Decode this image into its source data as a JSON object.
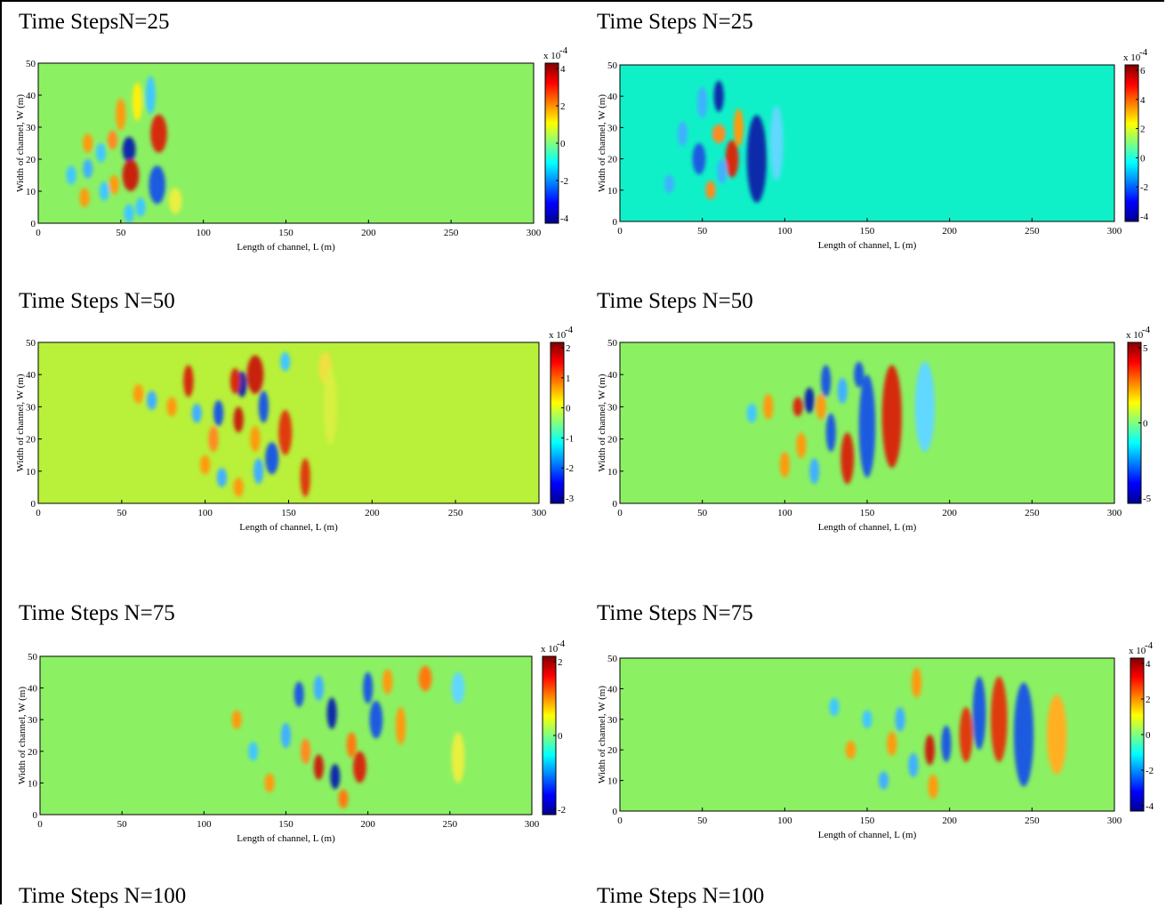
{
  "panels": [
    {
      "title": "Time StepsN=25",
      "pos": "row1-left",
      "bg": "#8cf063",
      "xlabel": "Length of channel, L (m)",
      "ylabel": "Width of channel, W (m)",
      "xticks": [
        0,
        50,
        100,
        150,
        200,
        250,
        300
      ],
      "yticks": [
        0,
        10,
        20,
        30,
        40,
        50
      ],
      "xlim": [
        0,
        300
      ],
      "ylim": [
        0,
        50
      ],
      "cbar_exp": "x 10",
      "cbar_pow": "-4",
      "cbar_ticks": [
        "4",
        "2",
        "0",
        "-2",
        "-4"
      ],
      "blobs": [
        [
          55,
          23,
          4,
          4,
          "#0a2aaa"
        ],
        [
          73,
          28,
          5,
          6,
          "#d62a0a"
        ],
        [
          56,
          15,
          5,
          5,
          "#c8200a"
        ],
        [
          72,
          12,
          5,
          6,
          "#1a5ae0"
        ],
        [
          50,
          34,
          3,
          5,
          "#ff9a10"
        ],
        [
          60,
          38,
          3,
          6,
          "#fff010"
        ],
        [
          68,
          40,
          3,
          6,
          "#40c8ff"
        ],
        [
          45,
          26,
          3,
          3,
          "#ff8a20"
        ],
        [
          38,
          22,
          3,
          3,
          "#40c8ff"
        ],
        [
          30,
          25,
          3,
          3,
          "#ff9a10"
        ],
        [
          30,
          17,
          3,
          3,
          "#40b0ff"
        ],
        [
          46,
          12,
          3,
          3,
          "#ff9a10"
        ],
        [
          40,
          10,
          3,
          3,
          "#40c8ff"
        ],
        [
          28,
          8,
          3,
          3,
          "#ff9a10"
        ],
        [
          20,
          15,
          3,
          3,
          "#40c8ff"
        ],
        [
          62,
          5,
          3,
          3,
          "#40c8ff"
        ],
        [
          83,
          7,
          4,
          4,
          "#e8f040"
        ],
        [
          55,
          3,
          3,
          3,
          "#40c8ff"
        ]
      ]
    },
    {
      "title": "Time Steps N=25",
      "pos": "row1-right",
      "bg": "#10f0c8",
      "xlabel": "Length of channel, L (m)",
      "ylabel": "Width of channel, W (m)",
      "xticks": [
        0,
        50,
        100,
        150,
        200,
        250,
        300
      ],
      "yticks": [
        0,
        10,
        20,
        30,
        40,
        50
      ],
      "xlim": [
        0,
        300
      ],
      "ylim": [
        0,
        50
      ],
      "cbar_exp": "x 10",
      "cbar_pow": "-4",
      "cbar_ticks": [
        "6",
        "4",
        "2",
        "0",
        "-2",
        "-4"
      ],
      "blobs": [
        [
          83,
          20,
          6,
          14,
          "#0a2aaa"
        ],
        [
          68,
          20,
          4,
          6,
          "#d62a0a"
        ],
        [
          72,
          30,
          3,
          6,
          "#ff9a10"
        ],
        [
          60,
          28,
          4,
          3,
          "#ff8a20"
        ],
        [
          55,
          10,
          3,
          3,
          "#ff8a20"
        ],
        [
          60,
          40,
          3,
          5,
          "#0a2aaa"
        ],
        [
          50,
          38,
          3,
          5,
          "#40b0ff"
        ],
        [
          48,
          20,
          4,
          5,
          "#1a5ae0"
        ],
        [
          38,
          28,
          3,
          4,
          "#40b0ff"
        ],
        [
          30,
          12,
          3,
          3,
          "#40b0ff"
        ],
        [
          62,
          16,
          3,
          4,
          "#40b0ff"
        ],
        [
          95,
          25,
          4,
          12,
          "#60d8ff"
        ]
      ]
    },
    {
      "title": "Time Steps N=50",
      "pos": "row2-left",
      "bg": "#b8f03a",
      "xlabel": "Length of channel, L (m)",
      "ylabel": "Width of channel, W (m)",
      "xticks": [
        0,
        50,
        100,
        150,
        200,
        250,
        300
      ],
      "yticks": [
        0,
        10,
        20,
        30,
        40,
        50
      ],
      "xlim": [
        0,
        300
      ],
      "ylim": [
        0,
        50
      ],
      "cbar_exp": "x 10",
      "cbar_pow": "-4",
      "cbar_ticks": [
        "2",
        "1",
        "0",
        "-1",
        "-2",
        "-3"
      ],
      "blobs": [
        [
          130,
          40,
          5,
          6,
          "#c8200a"
        ],
        [
          122,
          37,
          3,
          4,
          "#0a2aaa"
        ],
        [
          118,
          38,
          3,
          4,
          "#d62a0a"
        ],
        [
          135,
          30,
          3,
          5,
          "#1a5ae0"
        ],
        [
          120,
          26,
          3,
          4,
          "#c8200a"
        ],
        [
          148,
          22,
          4,
          7,
          "#e03a0a"
        ],
        [
          160,
          8,
          3,
          6,
          "#e03a0a"
        ],
        [
          140,
          14,
          4,
          5,
          "#1a5ae0"
        ],
        [
          132,
          10,
          3,
          4,
          "#40b0ff"
        ],
        [
          130,
          20,
          3,
          4,
          "#ff9a10"
        ],
        [
          108,
          28,
          3,
          4,
          "#1a5ae0"
        ],
        [
          105,
          20,
          3,
          4,
          "#ff8a20"
        ],
        [
          90,
          38,
          3,
          5,
          "#d62a0a"
        ],
        [
          95,
          28,
          3,
          3,
          "#40b0ff"
        ],
        [
          80,
          30,
          3,
          3,
          "#ff9a10"
        ],
        [
          60,
          34,
          3,
          3,
          "#ff9a10"
        ],
        [
          68,
          32,
          3,
          3,
          "#40b0ff"
        ],
        [
          110,
          8,
          3,
          3,
          "#40b0ff"
        ],
        [
          100,
          12,
          3,
          3,
          "#ff9a10"
        ],
        [
          120,
          5,
          3,
          3,
          "#ff9a10"
        ],
        [
          148,
          44,
          3,
          3,
          "#40c8ff"
        ],
        [
          172,
          42,
          4,
          5,
          "#f0e040"
        ],
        [
          175,
          30,
          4,
          12,
          "#d8f040"
        ]
      ]
    },
    {
      "title": "Time Steps N=50",
      "pos": "row2-right",
      "bg": "#8cf063",
      "xlabel": "Length of channel, L (m)",
      "ylabel": "Width of channel, W (m)",
      "xticks": [
        0,
        50,
        100,
        150,
        200,
        250,
        300
      ],
      "yticks": [
        0,
        10,
        20,
        30,
        40,
        50
      ],
      "xlim": [
        0,
        300
      ],
      "ylim": [
        0,
        50
      ],
      "cbar_exp": "x 10",
      "cbar_pow": "-4",
      "cbar_ticks": [
        "5",
        "0",
        "-5"
      ],
      "blobs": [
        [
          165,
          27,
          6,
          16,
          "#d62a0a"
        ],
        [
          150,
          24,
          5,
          16,
          "#1a5ae0"
        ],
        [
          138,
          14,
          4,
          8,
          "#d62a0a"
        ],
        [
          128,
          22,
          3,
          6,
          "#1a5ae0"
        ],
        [
          122,
          30,
          3,
          4,
          "#ff9a10"
        ],
        [
          125,
          38,
          3,
          5,
          "#1a5ae0"
        ],
        [
          115,
          32,
          3,
          4,
          "#0a2aaa"
        ],
        [
          108,
          30,
          3,
          3,
          "#d62a0a"
        ],
        [
          135,
          35,
          3,
          4,
          "#40b0ff"
        ],
        [
          145,
          40,
          3,
          4,
          "#1a5ae0"
        ],
        [
          110,
          18,
          3,
          4,
          "#ff9a10"
        ],
        [
          118,
          10,
          3,
          4,
          "#40b0ff"
        ],
        [
          100,
          12,
          3,
          4,
          "#ff9a10"
        ],
        [
          90,
          30,
          3,
          4,
          "#ff9a10"
        ],
        [
          80,
          28,
          3,
          3,
          "#40c8ff"
        ],
        [
          185,
          30,
          6,
          14,
          "#60d8ff"
        ]
      ]
    },
    {
      "title": "Time Steps N=75",
      "pos": "row3-left",
      "bg": "#8cf063",
      "xlabel": "Length of channel, L (m)",
      "ylabel": "Width of channel, W (m)",
      "xticks": [
        0,
        50,
        100,
        150,
        200,
        250,
        300
      ],
      "yticks": [
        0,
        10,
        20,
        30,
        40,
        50
      ],
      "xlim": [
        0,
        300
      ],
      "ylim": [
        0,
        50
      ],
      "cbar_exp": "x 10",
      "cbar_pow": "-4",
      "cbar_ticks": [
        "2",
        "0",
        "-2"
      ],
      "blobs": [
        [
          235,
          43,
          4,
          4,
          "#ff7a10"
        ],
        [
          212,
          42,
          3,
          4,
          "#ff9a10"
        ],
        [
          200,
          40,
          3,
          5,
          "#1a5ae0"
        ],
        [
          205,
          30,
          4,
          6,
          "#1a5ae0"
        ],
        [
          190,
          22,
          3,
          4,
          "#ff7a10"
        ],
        [
          178,
          32,
          3,
          5,
          "#0a2aaa"
        ],
        [
          195,
          15,
          4,
          5,
          "#d62a0a"
        ],
        [
          180,
          12,
          3,
          4,
          "#0a2aaa"
        ],
        [
          170,
          15,
          3,
          4,
          "#c8200a"
        ],
        [
          185,
          5,
          3,
          3,
          "#ff7a10"
        ],
        [
          162,
          20,
          3,
          4,
          "#ff8a20"
        ],
        [
          150,
          25,
          3,
          4,
          "#40b0ff"
        ],
        [
          158,
          38,
          3,
          4,
          "#1a5ae0"
        ],
        [
          170,
          40,
          3,
          4,
          "#40b0ff"
        ],
        [
          220,
          28,
          3,
          6,
          "#ff9a10"
        ],
        [
          255,
          40,
          4,
          5,
          "#60d8ff"
        ],
        [
          255,
          18,
          4,
          8,
          "#e8f040"
        ],
        [
          120,
          30,
          3,
          3,
          "#ff9a10"
        ],
        [
          130,
          20,
          3,
          3,
          "#40c8ff"
        ],
        [
          140,
          10,
          3,
          3,
          "#ff9a10"
        ]
      ]
    },
    {
      "title": "Time Steps N=75",
      "pos": "row3-right",
      "bg": "#8cf063",
      "xlabel": "Length of channel, L (m)",
      "ylabel": "Width of channel, W (m)",
      "xticks": [
        0,
        50,
        100,
        150,
        200,
        250,
        300
      ],
      "yticks": [
        0,
        10,
        20,
        30,
        40,
        50
      ],
      "xlim": [
        0,
        300
      ],
      "ylim": [
        0,
        50
      ],
      "cbar_exp": "x 10",
      "cbar_pow": "-4",
      "cbar_ticks": [
        "4",
        "2",
        "0",
        "-2",
        "-4"
      ],
      "blobs": [
        [
          230,
          30,
          5,
          14,
          "#e03a0a"
        ],
        [
          245,
          25,
          6,
          17,
          "#1a5ae0"
        ],
        [
          265,
          25,
          6,
          13,
          "#ffb020"
        ],
        [
          218,
          32,
          4,
          12,
          "#1a5ae0"
        ],
        [
          210,
          25,
          4,
          9,
          "#e03a0a"
        ],
        [
          198,
          22,
          3,
          6,
          "#1a5ae0"
        ],
        [
          188,
          20,
          3,
          5,
          "#c8200a"
        ],
        [
          178,
          15,
          3,
          4,
          "#40b0ff"
        ],
        [
          190,
          8,
          3,
          4,
          "#ff9a10"
        ],
        [
          180,
          42,
          3,
          5,
          "#ff9a10"
        ],
        [
          170,
          30,
          3,
          4,
          "#40b0ff"
        ],
        [
          165,
          22,
          3,
          4,
          "#ff9a10"
        ],
        [
          160,
          10,
          3,
          3,
          "#40b0ff"
        ],
        [
          150,
          30,
          3,
          3,
          "#40c8ff"
        ],
        [
          140,
          20,
          3,
          3,
          "#ff9a10"
        ],
        [
          130,
          34,
          3,
          3,
          "#40c8ff"
        ]
      ]
    }
  ],
  "bottom_titles": [
    "Time Steps N=100",
    "Time Steps N=100"
  ],
  "colormap": [
    "#00008f",
    "#0000ff",
    "#0080ff",
    "#00ffff",
    "#80ff80",
    "#ffff00",
    "#ff8000",
    "#ff0000",
    "#800000"
  ]
}
